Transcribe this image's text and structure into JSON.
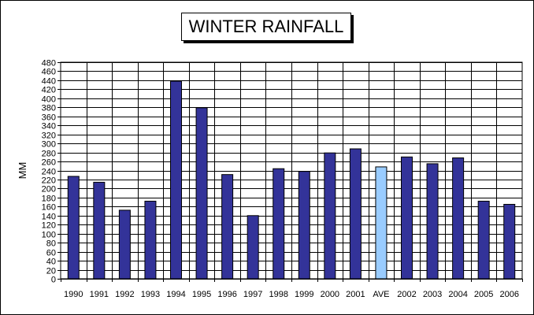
{
  "chart_data": {
    "type": "bar",
    "title": "WINTER RAINFALL",
    "xlabel": "",
    "ylabel": "MM",
    "ylim": [
      0,
      480
    ],
    "y_tick_step": 20,
    "grid": true,
    "legend": "none",
    "categories": [
      "1990",
      "1991",
      "1992",
      "1993",
      "1994",
      "1995",
      "1996",
      "1997",
      "1998",
      "1999",
      "2000",
      "2001",
      "AVE",
      "2002",
      "2003",
      "2004",
      "2005",
      "2006"
    ],
    "values": [
      227,
      214,
      152,
      172,
      438,
      379,
      231,
      140,
      244,
      238,
      279,
      288,
      248,
      270,
      255,
      268,
      172,
      165
    ],
    "colors": {
      "bar": "#333399",
      "average_bar": "#99ccff",
      "outline": "#000000",
      "grid": "#000000",
      "background": "#ffffff"
    },
    "highlight_category": "AVE"
  }
}
